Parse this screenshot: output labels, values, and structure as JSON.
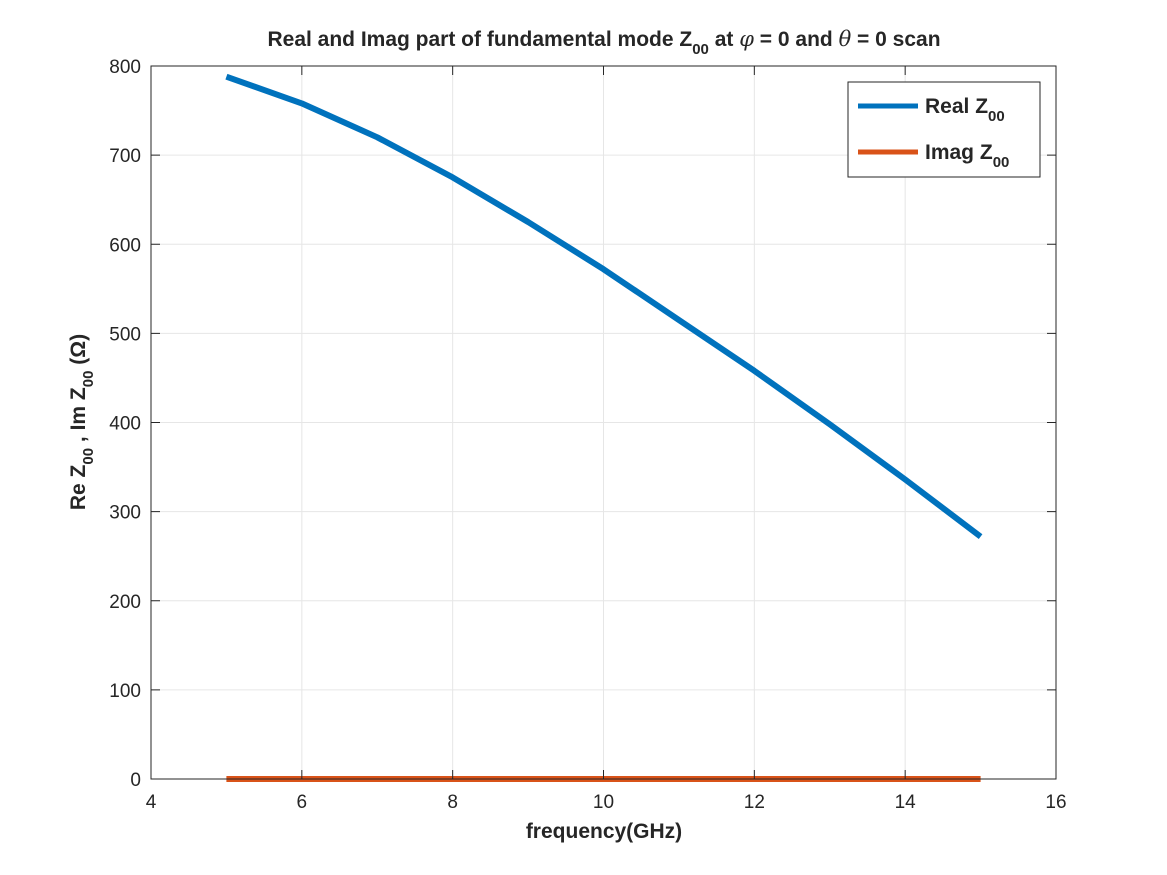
{
  "chart_data": {
    "type": "line",
    "title_parts": {
      "a": "Real and Imag part of fundamental mode Z",
      "sub": "00",
      "b": " at ",
      "phi": "φ",
      "c": " = 0 and ",
      "theta": "θ",
      "d": " = 0 scan"
    },
    "xlabel": "frequency(GHz)",
    "ylabel_parts": {
      "re": "Re Z",
      "sub1": "00",
      "mid": " , Im Z",
      "sub2": "00",
      "tail": " (Ω)"
    },
    "xlim": [
      4,
      16
    ],
    "ylim": [
      0,
      800
    ],
    "xticks": [
      4,
      6,
      8,
      10,
      12,
      14,
      16
    ],
    "yticks": [
      0,
      100,
      200,
      300,
      400,
      500,
      600,
      700,
      800
    ],
    "grid": true,
    "legend_position": "top-right",
    "series": [
      {
        "name_main": "Real Z",
        "name_sub": "00",
        "color": "#0072BD",
        "x": [
          5,
          6,
          7,
          8,
          9,
          10,
          11,
          12,
          13,
          14,
          15
        ],
        "y": [
          788,
          758,
          720,
          675,
          625,
          572,
          515,
          458,
          398,
          336,
          272
        ]
      },
      {
        "name_main": "Imag Z",
        "name_sub": "00",
        "color": "#D95319",
        "x": [
          5,
          15
        ],
        "y": [
          0,
          0
        ]
      }
    ]
  }
}
